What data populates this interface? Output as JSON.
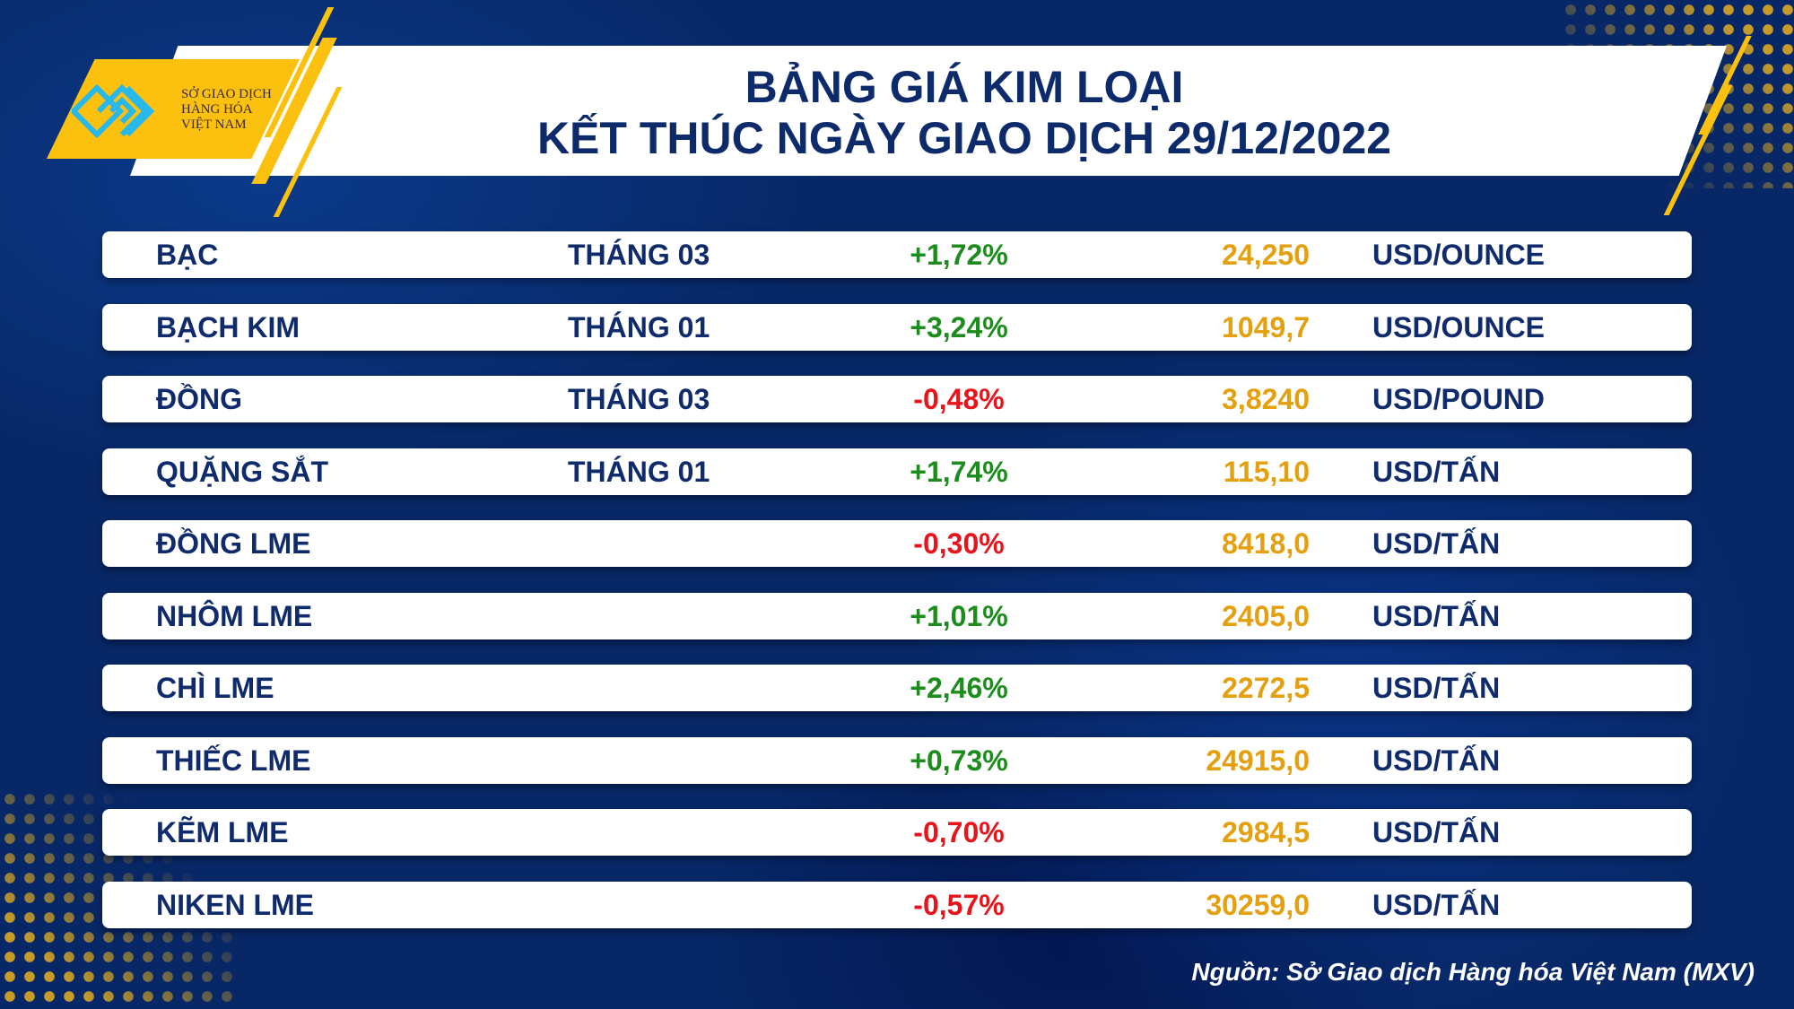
{
  "logo": {
    "line1": "SỞ GIAO DỊCH",
    "line2": "HÀNG HÓA",
    "line3": "VIỆT NAM"
  },
  "title": {
    "line1": "BẢNG GIÁ KIM LOẠI",
    "line2": "KẾT THÚC NGÀY GIAO DỊCH 29/12/2022"
  },
  "colors": {
    "up": "#1c8c1c",
    "down": "#e8141b",
    "price": "#e4a00f",
    "text": "#0f2b6b",
    "accent": "#fcc10f"
  },
  "rows": [
    {
      "name": "BẠC",
      "month": "THÁNG 03",
      "change": "+1,72%",
      "direction": "up",
      "price": "24,250",
      "unit": "USD/OUNCE"
    },
    {
      "name": "BẠCH KIM",
      "month": "THÁNG 01",
      "change": "+3,24%",
      "direction": "up",
      "price": "1049,7",
      "unit": "USD/OUNCE"
    },
    {
      "name": "ĐỒNG",
      "month": "THÁNG 03",
      "change": "-0,48%",
      "direction": "down",
      "price": "3,8240",
      "unit": "USD/POUND"
    },
    {
      "name": "QUẶNG SẮT",
      "month": "THÁNG 01",
      "change": "+1,74%",
      "direction": "up",
      "price": "115,10",
      "unit": "USD/TẤN"
    },
    {
      "name": "ĐỒNG LME",
      "month": "",
      "change": "-0,30%",
      "direction": "down",
      "price": "8418,0",
      "unit": "USD/TẤN"
    },
    {
      "name": "NHÔM LME",
      "month": "",
      "change": "+1,01%",
      "direction": "up",
      "price": "2405,0",
      "unit": "USD/TẤN"
    },
    {
      "name": "CHÌ LME",
      "month": "",
      "change": "+2,46%",
      "direction": "up",
      "price": "2272,5",
      "unit": "USD/TẤN"
    },
    {
      "name": "THIẾC LME",
      "month": "",
      "change": "+0,73%",
      "direction": "up",
      "price": "24915,0",
      "unit": "USD/TẤN"
    },
    {
      "name": "KẼM LME",
      "month": "",
      "change": "-0,70%",
      "direction": "down",
      "price": "2984,5",
      "unit": "USD/TẤN"
    },
    {
      "name": "NIKEN LME",
      "month": "",
      "change": "-0,57%",
      "direction": "down",
      "price": "30259,0",
      "unit": "USD/TẤN"
    }
  ],
  "source": "Nguồn: Sở Giao dịch Hàng hóa Việt Nam (MXV)"
}
